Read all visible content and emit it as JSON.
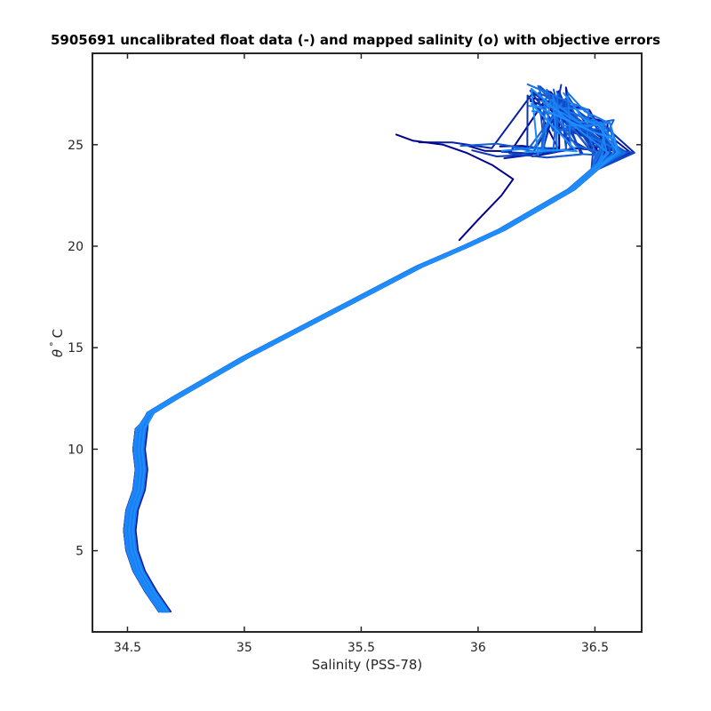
{
  "chart_data": {
    "type": "line",
    "title": "5905691 uncalibrated float data (-) and mapped salinity (o) with objective errors",
    "xlabel": "Salinity (PSS-78)",
    "ylabel_symbol": "θ",
    "ylabel_degree": "°",
    "ylabel_unit": "C",
    "xlim": [
      34.35,
      36.7
    ],
    "ylim": [
      1.0,
      29.5
    ],
    "xticks": [
      34.5,
      35,
      35.5,
      36,
      36.5
    ],
    "yticks": [
      5,
      10,
      15,
      20,
      25
    ],
    "x_tick_labels": [
      "34.5",
      "35",
      "35.5",
      "36",
      "36.5"
    ],
    "y_tick_labels": [
      "5",
      "10",
      "15",
      "20",
      "25"
    ],
    "grid": false,
    "legend": "none",
    "color_range": [
      "#00008b",
      "#1e90ff"
    ],
    "profile_count": 40,
    "base_profile": {
      "x": [
        34.66,
        34.6,
        34.55,
        34.52,
        34.51,
        34.52,
        34.55,
        34.56,
        34.55,
        34.56,
        34.6,
        34.7,
        34.85,
        35.0,
        35.25,
        35.5,
        35.75,
        35.95,
        36.1,
        36.25,
        36.4,
        36.5,
        36.58,
        36.5,
        36.4,
        36.3
      ],
      "y": [
        2.0,
        3.0,
        4.0,
        5.0,
        6.0,
        7.0,
        8.0,
        9.0,
        10.0,
        11.0,
        11.8,
        12.5,
        13.5,
        14.5,
        16.0,
        17.5,
        19.0,
        20.0,
        20.8,
        21.8,
        22.8,
        23.8,
        24.6,
        25.3,
        26.0,
        27.0
      ]
    },
    "anomaly_profile": {
      "x": [
        35.92,
        36.0,
        36.1,
        36.15,
        36.06,
        35.95,
        35.85,
        35.72,
        35.65
      ],
      "y": [
        20.3,
        21.3,
        22.5,
        23.3,
        24.0,
        24.6,
        25.0,
        25.2,
        25.5
      ]
    }
  }
}
